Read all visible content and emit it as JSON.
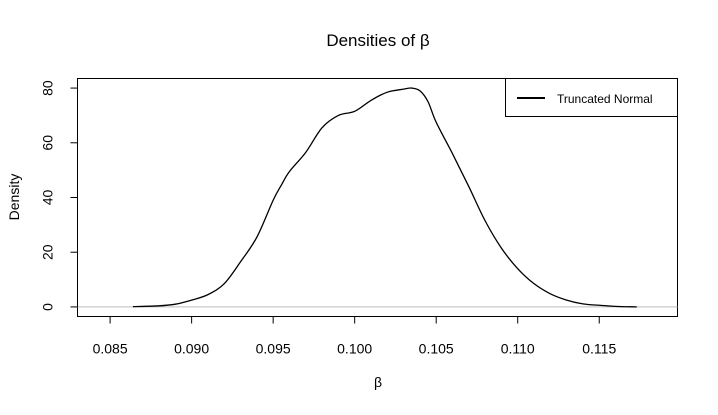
{
  "chart_data": {
    "type": "line",
    "title": "Densities of β",
    "xlabel": "β",
    "ylabel": "Density",
    "xlim": [
      0.083,
      0.1198
    ],
    "ylim": [
      -3.5,
      83.5
    ],
    "x_ticks": [
      0.085,
      0.09,
      0.095,
      0.1,
      0.105,
      0.11,
      0.115
    ],
    "x_tick_labels": [
      "0.085",
      "0.090",
      "0.095",
      "0.100",
      "0.105",
      "0.110",
      "0.115"
    ],
    "y_ticks": [
      0,
      20,
      40,
      60,
      80
    ],
    "y_tick_labels": [
      "0",
      "20",
      "40",
      "60",
      "80"
    ],
    "baseline": 0,
    "baseline_color": "#bebebe",
    "line_color": "#000000",
    "legend_position": "top-right",
    "series": [
      {
        "name": "Truncated Normal",
        "x": [
          0.0864,
          0.088,
          0.089,
          0.09,
          0.091,
          0.092,
          0.093,
          0.094,
          0.095,
          0.0955,
          0.096,
          0.097,
          0.098,
          0.099,
          0.1,
          0.101,
          0.102,
          0.103,
          0.1035,
          0.104,
          0.1045,
          0.105,
          0.106,
          0.107,
          0.108,
          0.109,
          0.11,
          0.111,
          0.112,
          0.113,
          0.114,
          0.115,
          0.116,
          0.1173
        ],
        "y": [
          0.1,
          0.4,
          1.0,
          2.5,
          4.5,
          8.5,
          16.5,
          25.5,
          39.0,
          44.5,
          49.5,
          56.5,
          65.5,
          70.0,
          71.5,
          75.5,
          78.5,
          79.6,
          80.0,
          79.0,
          75.0,
          67.5,
          56.0,
          44.0,
          31.5,
          21.5,
          14.0,
          8.5,
          4.8,
          2.5,
          1.1,
          0.6,
          0.2,
          0.0
        ]
      }
    ]
  }
}
